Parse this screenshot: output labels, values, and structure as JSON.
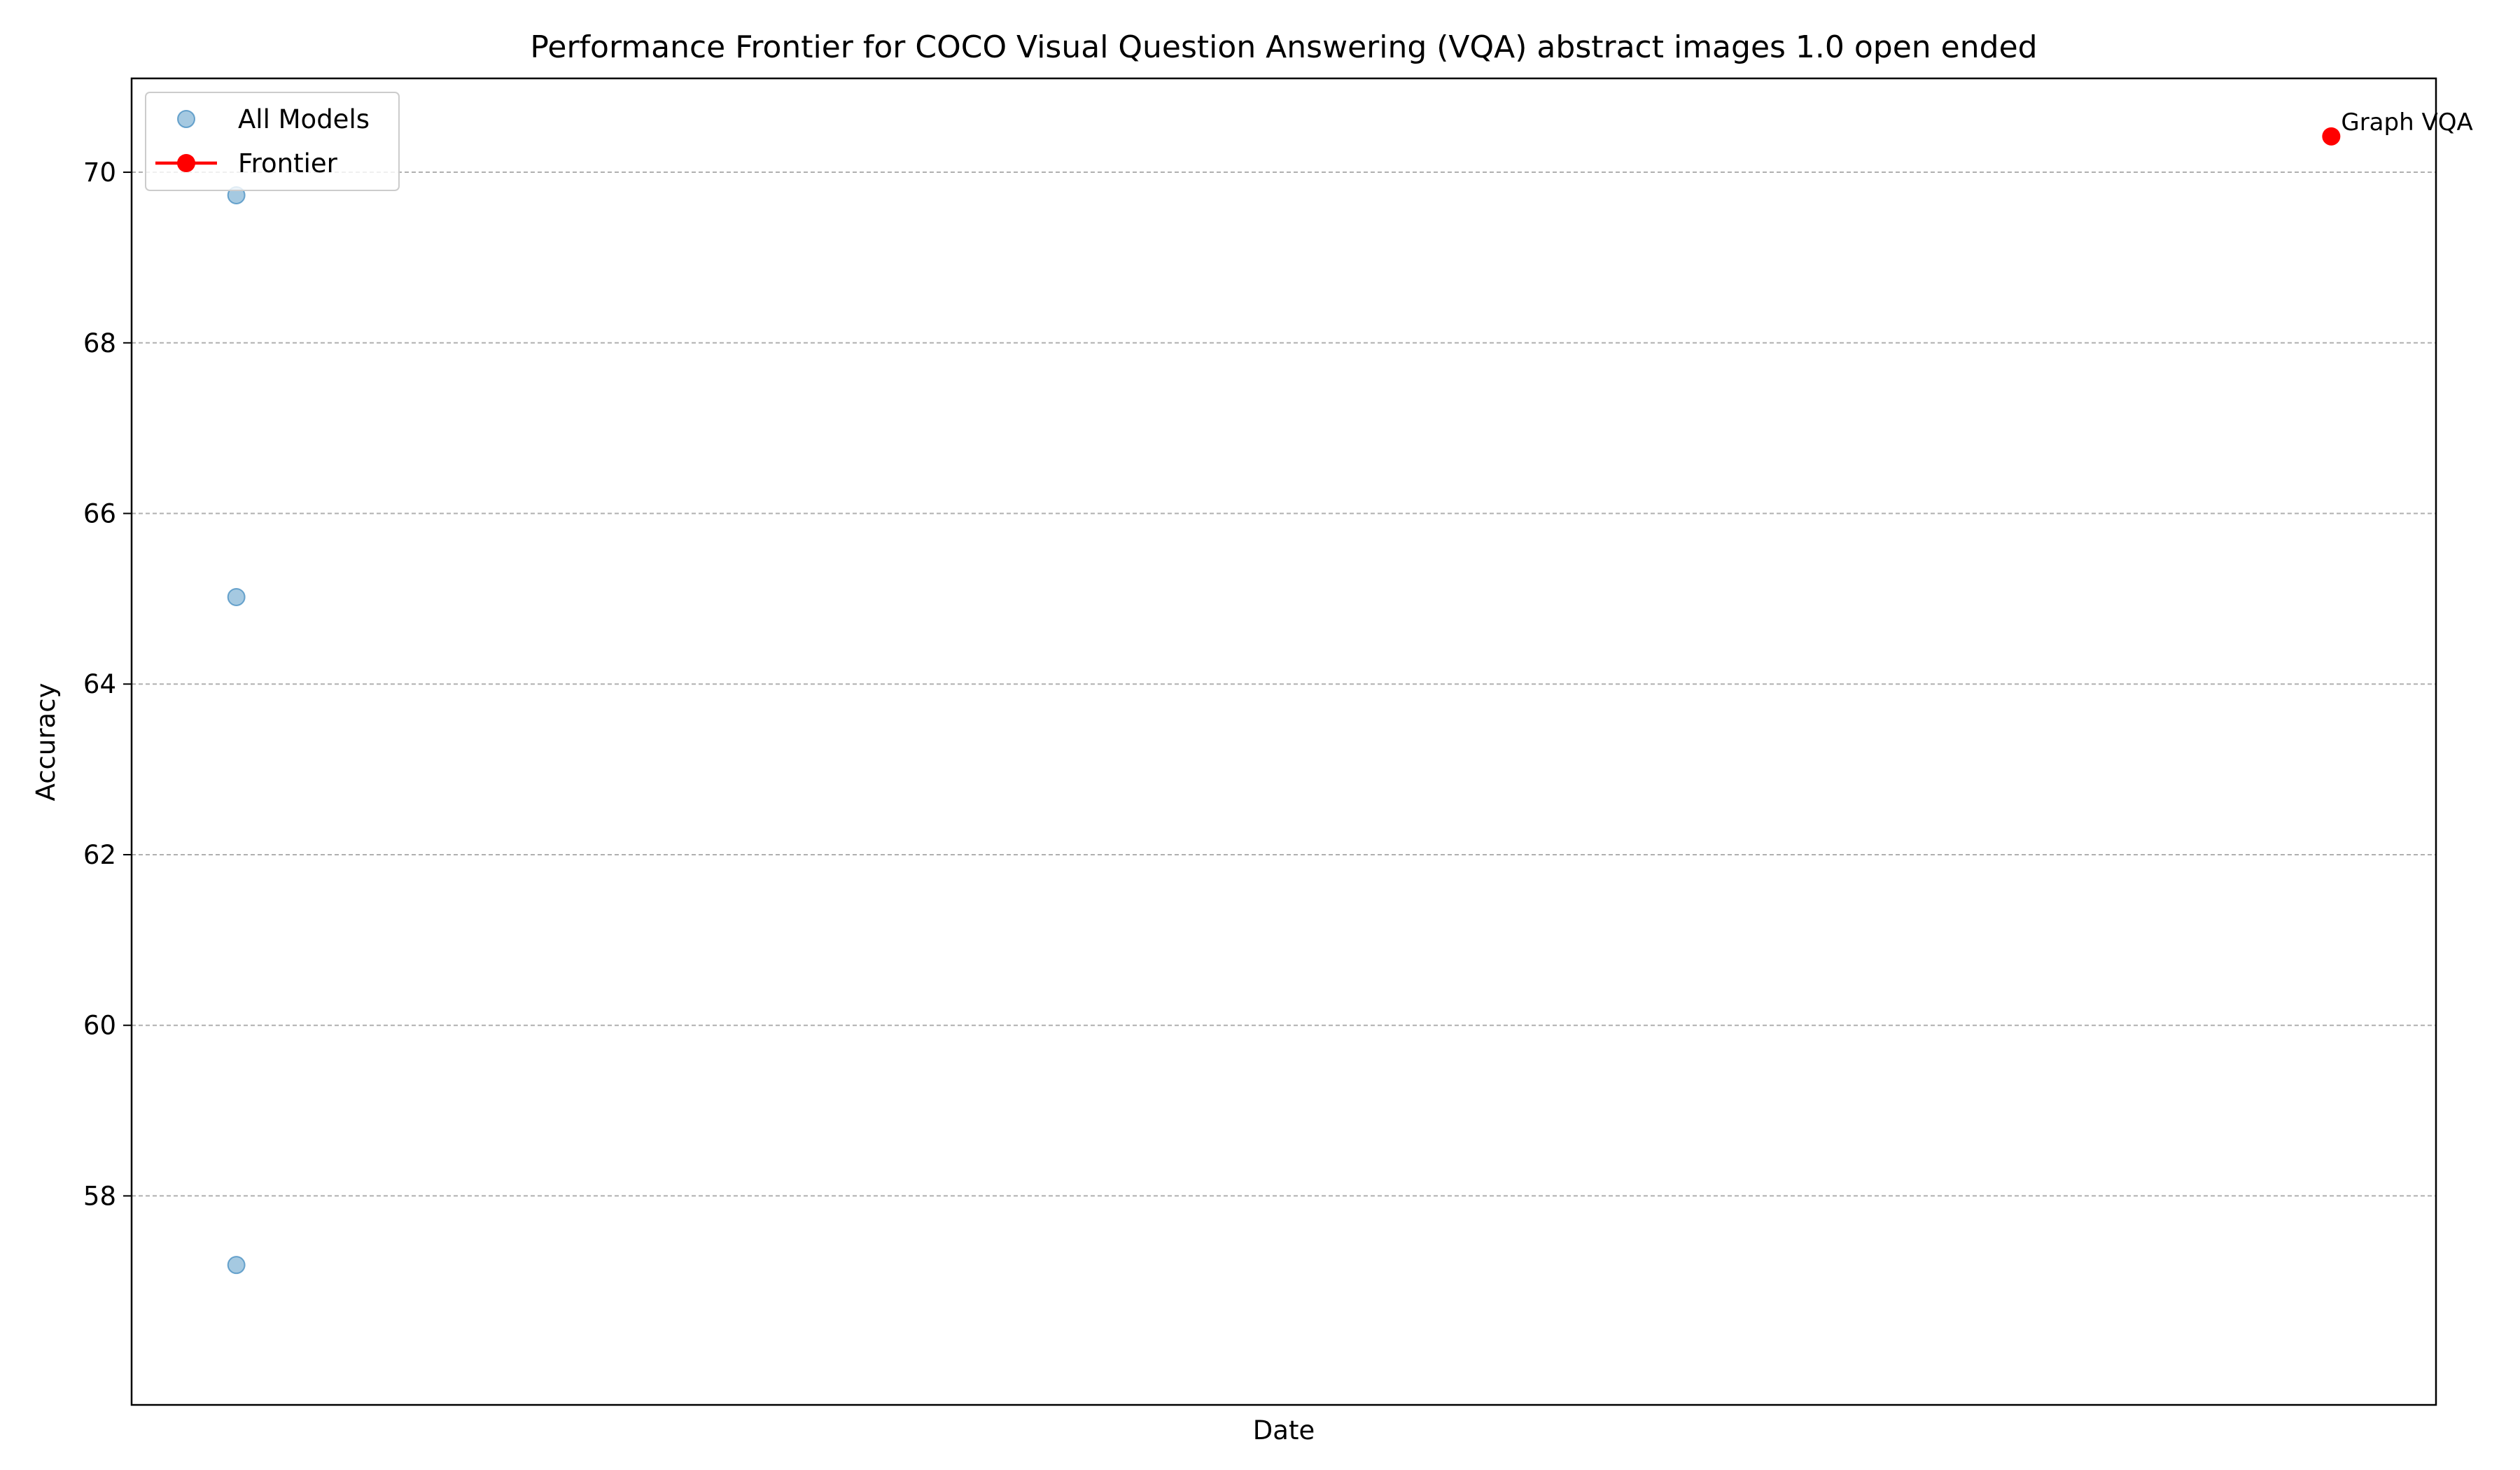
{
  "chart_data": {
    "type": "scatter",
    "title": "Performance Frontier for COCO Visual Question Answering (VQA) abstract images 1.0 open ended",
    "xlabel": "Date",
    "ylabel": "Accuracy",
    "ylim": [
      55.55,
      71.1
    ],
    "yticks": [
      58,
      60,
      62,
      64,
      66,
      68,
      70
    ],
    "xlim": [
      -0.05,
      1.05
    ],
    "grid": {
      "y": true,
      "x": false
    },
    "legend": {
      "placement": "upper left",
      "entries": [
        "All Models",
        "Frontier"
      ]
    },
    "series": [
      {
        "name": "All Models",
        "color": "#1f77b4",
        "points": [
          {
            "x": 0.0,
            "y": 69.73
          },
          {
            "x": 0.0,
            "y": 65.02
          },
          {
            "x": 0.0,
            "y": 57.19
          }
        ]
      },
      {
        "name": "Frontier",
        "color": "#ff0000",
        "points": [
          {
            "x": 1.0,
            "y": 70.42,
            "label": "Graph VQA"
          }
        ]
      }
    ]
  }
}
